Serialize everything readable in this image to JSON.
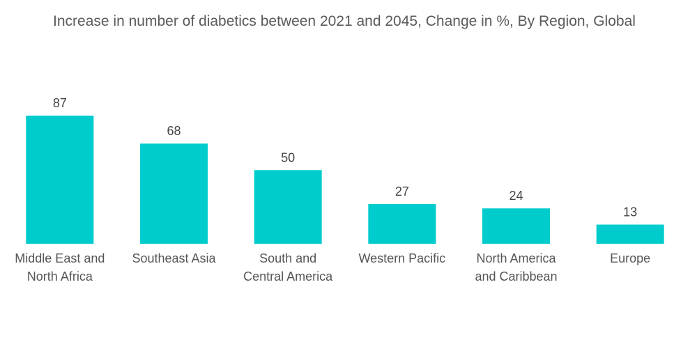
{
  "chart_data": {
    "type": "bar",
    "title": "Increase in number of diabetics between 2021 and 2045, Change in %, By Region, Global",
    "xlabel": "",
    "ylabel": "",
    "categories": [
      [
        "Middle East and",
        "North Africa"
      ],
      [
        "Southeast Asia"
      ],
      [
        "South and",
        "Central America"
      ],
      [
        "Western Pacific"
      ],
      [
        "North America",
        "and Caribbean"
      ],
      [
        "Europe"
      ]
    ],
    "values": [
      87,
      68,
      50,
      27,
      24,
      13
    ],
    "ylim": [
      0,
      87
    ],
    "grid": false,
    "legend": "none",
    "bar_color": "#00cccd"
  }
}
